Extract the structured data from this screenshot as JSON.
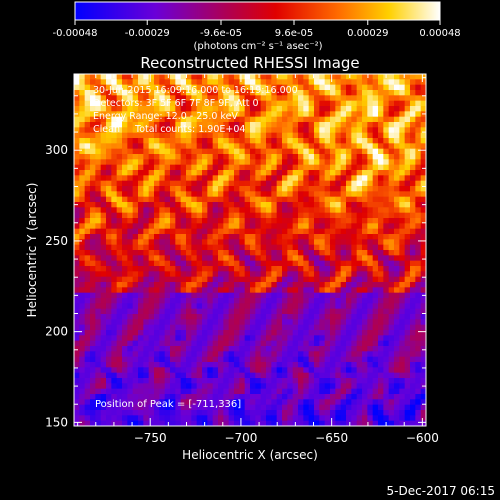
{
  "colorbar": {
    "tick_labels": [
      "-0.00048",
      "-0.00029",
      "-9.6e-05",
      "9.6e-05",
      "0.00029",
      "0.00048"
    ],
    "tick_values": [
      -0.00048,
      -0.00029,
      -9.6e-05,
      9.6e-05,
      0.00029,
      0.00048
    ],
    "units_text": "(photons cm⁻² s⁻¹ asec⁻²)"
  },
  "chart_data": {
    "type": "heatmap",
    "title": "Reconstructed RHESSI Image",
    "xlabel": "Heliocentric X (arcsec)",
    "ylabel": "Heliocentric Y (arcsec)",
    "xlim": [
      -792,
      -598
    ],
    "ylim": [
      148,
      342
    ],
    "x_ticks": [
      -750,
      -700,
      -650,
      -600
    ],
    "x_tick_labels": [
      "−750",
      "−700",
      "−650",
      "−600"
    ],
    "y_ticks": [
      150,
      200,
      250,
      300
    ],
    "y_tick_labels": [
      "150",
      "200",
      "250",
      "300"
    ],
    "colormap": "rainbow-like: blue, purple, red, orange, yellow, white",
    "value_range": [
      -0.00048,
      0.00048
    ],
    "annotations": [
      "30-Jun-2015 16:09:16.000 to 16:19:16.000",
      "Detectors: 3F 5F 6F 7F 8F 9F, Att 0",
      "Energy Range: 12.0 - 25.0 keV",
      "Clean     Total counts: 1.90E+04",
      "Position of Peak = [-711,336]"
    ],
    "peak_position": [
      -711,
      336
    ],
    "grid": false
  },
  "footer": {
    "timestamp": "5-Dec-2017 06:15"
  }
}
